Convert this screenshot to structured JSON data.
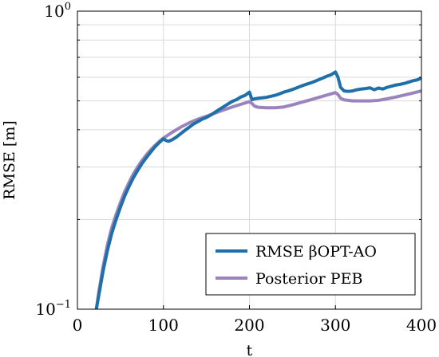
{
  "chart_data": {
    "type": "line",
    "title": "",
    "xlabel": "t",
    "ylabel": "RMSE [m]",
    "xlim": [
      0,
      400
    ],
    "ylim": [
      0.1,
      1.0
    ],
    "yscale": "log",
    "grid": true,
    "legend_position": "bottom-right",
    "x_ticks": [
      0,
      100,
      200,
      300,
      400
    ],
    "x_tick_labels": [
      "0",
      "100",
      "200",
      "300",
      "400"
    ],
    "y_ticks": [
      0.1,
      1.0
    ],
    "y_tick_labels": [
      {
        "base": "10",
        "exp": "−1"
      },
      {
        "base": "10",
        "exp": "0"
      }
    ],
    "series": [
      {
        "name": "RMSE βOPT-AO",
        "color": "#1f6fa8",
        "x": [
          22,
          25,
          30,
          35,
          40,
          45,
          50,
          55,
          60,
          65,
          70,
          75,
          80,
          85,
          90,
          95,
          100,
          103,
          106,
          110,
          115,
          120,
          125,
          130,
          135,
          140,
          145,
          150,
          155,
          160,
          165,
          170,
          175,
          180,
          185,
          190,
          195,
          200,
          203,
          206,
          210,
          215,
          220,
          225,
          230,
          235,
          240,
          245,
          250,
          255,
          260,
          265,
          270,
          275,
          280,
          285,
          290,
          295,
          300,
          303,
          306,
          310,
          315,
          320,
          325,
          330,
          335,
          340,
          345,
          350,
          355,
          360,
          365,
          370,
          375,
          380,
          385,
          390,
          395,
          400
        ],
        "y": [
          0.1,
          0.112,
          0.135,
          0.158,
          0.18,
          0.2,
          0.22,
          0.24,
          0.258,
          0.276,
          0.292,
          0.308,
          0.322,
          0.336,
          0.35,
          0.362,
          0.373,
          0.368,
          0.366,
          0.37,
          0.378,
          0.388,
          0.398,
          0.408,
          0.418,
          0.426,
          0.434,
          0.44,
          0.448,
          0.458,
          0.468,
          0.478,
          0.488,
          0.498,
          0.505,
          0.515,
          0.522,
          0.535,
          0.505,
          0.508,
          0.51,
          0.512,
          0.514,
          0.518,
          0.522,
          0.528,
          0.535,
          0.54,
          0.546,
          0.553,
          0.56,
          0.567,
          0.573,
          0.58,
          0.588,
          0.596,
          0.605,
          0.612,
          0.625,
          0.6,
          0.555,
          0.54,
          0.538,
          0.54,
          0.545,
          0.548,
          0.55,
          0.553,
          0.545,
          0.552,
          0.548,
          0.555,
          0.56,
          0.565,
          0.568,
          0.572,
          0.578,
          0.584,
          0.588,
          0.596
        ]
      },
      {
        "name": "Posterior PEB",
        "color": "#9b84bd",
        "x": [
          22,
          25,
          30,
          35,
          40,
          45,
          50,
          55,
          60,
          65,
          70,
          75,
          80,
          85,
          90,
          95,
          100,
          110,
          120,
          130,
          140,
          150,
          160,
          170,
          180,
          190,
          200,
          203,
          206,
          210,
          220,
          230,
          240,
          250,
          260,
          270,
          280,
          290,
          300,
          303,
          306,
          310,
          320,
          330,
          340,
          350,
          360,
          370,
          380,
          390,
          400
        ],
        "y": [
          0.1,
          0.115,
          0.14,
          0.165,
          0.188,
          0.208,
          0.228,
          0.248,
          0.266,
          0.284,
          0.3,
          0.315,
          0.329,
          0.342,
          0.354,
          0.365,
          0.375,
          0.392,
          0.408,
          0.422,
          0.434,
          0.444,
          0.455,
          0.466,
          0.477,
          0.487,
          0.497,
          0.49,
          0.48,
          0.476,
          0.474,
          0.474,
          0.477,
          0.485,
          0.494,
          0.503,
          0.513,
          0.523,
          0.533,
          0.525,
          0.51,
          0.504,
          0.5,
          0.5,
          0.5,
          0.502,
          0.508,
          0.515,
          0.523,
          0.531,
          0.54
        ]
      }
    ]
  }
}
